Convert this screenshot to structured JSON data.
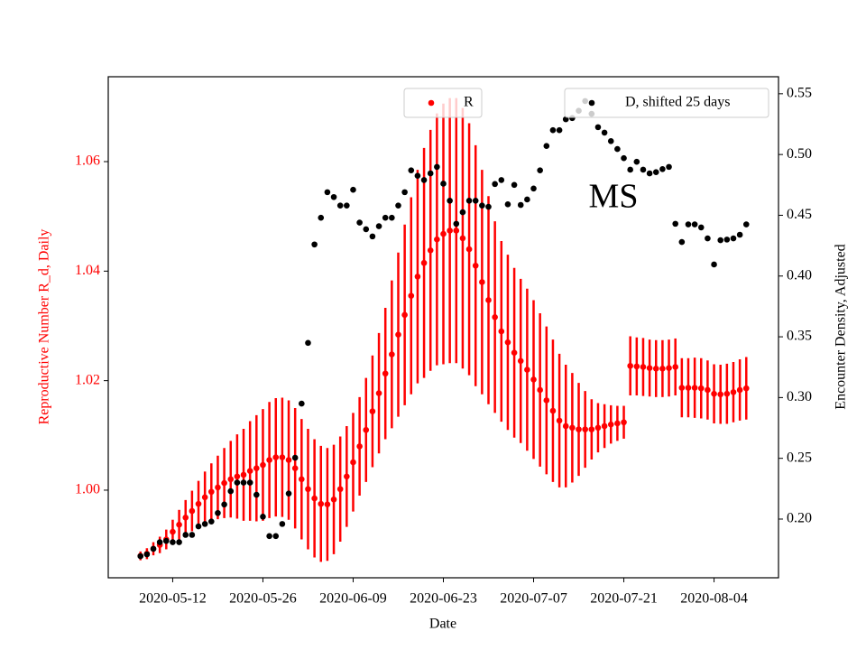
{
  "chart_data": {
    "type": "scatter",
    "xlabel": "Date",
    "ylabel": "Reproductive Number R_d, Daily",
    "y2label": "Encounter Density, Adjusted",
    "annotation": "MS",
    "x": [
      "2020-05-07",
      "2020-05-08",
      "2020-05-09",
      "2020-05-10",
      "2020-05-11",
      "2020-05-12",
      "2020-05-13",
      "2020-05-14",
      "2020-05-15",
      "2020-05-16",
      "2020-05-17",
      "2020-05-18",
      "2020-05-19",
      "2020-05-20",
      "2020-05-21",
      "2020-05-22",
      "2020-05-23",
      "2020-05-24",
      "2020-05-25",
      "2020-05-26",
      "2020-05-27",
      "2020-05-28",
      "2020-05-29",
      "2020-05-30",
      "2020-05-31",
      "2020-06-01",
      "2020-06-02",
      "2020-06-03",
      "2020-06-04",
      "2020-06-05",
      "2020-06-06",
      "2020-06-07",
      "2020-06-08",
      "2020-06-09",
      "2020-06-10",
      "2020-06-11",
      "2020-06-12",
      "2020-06-13",
      "2020-06-14",
      "2020-06-15",
      "2020-06-16",
      "2020-06-17",
      "2020-06-18",
      "2020-06-19",
      "2020-06-20",
      "2020-06-21",
      "2020-06-22",
      "2020-06-23",
      "2020-06-24",
      "2020-06-25",
      "2020-06-26",
      "2020-06-27",
      "2020-06-28",
      "2020-06-29",
      "2020-06-30",
      "2020-07-01",
      "2020-07-02",
      "2020-07-03",
      "2020-07-04",
      "2020-07-05",
      "2020-07-06",
      "2020-07-07",
      "2020-07-08",
      "2020-07-09",
      "2020-07-10",
      "2020-07-11",
      "2020-07-12",
      "2020-07-13",
      "2020-07-14",
      "2020-07-15",
      "2020-07-16",
      "2020-07-17",
      "2020-07-18",
      "2020-07-19",
      "2020-07-20",
      "2020-07-21",
      "2020-07-22",
      "2020-07-23",
      "2020-07-24",
      "2020-07-25",
      "2020-07-26",
      "2020-07-27",
      "2020-07-28",
      "2020-07-29",
      "2020-07-30",
      "2020-07-31",
      "2020-08-01",
      "2020-08-02",
      "2020-08-03",
      "2020-08-04",
      "2020-08-05",
      "2020-08-06",
      "2020-08-07",
      "2020-08-08",
      "2020-08-09"
    ],
    "series": [
      {
        "name": "R",
        "color": "#ff0000",
        "axis": "y",
        "values": [
          0.988,
          0.9884,
          0.9893,
          0.99,
          0.991,
          0.9924,
          0.9937,
          0.995,
          0.9962,
          0.9975,
          0.9987,
          0.9997,
          1.0005,
          1.0013,
          1.002,
          1.0025,
          1.0028,
          1.0035,
          1.004,
          1.0046,
          1.0055,
          1.006,
          1.006,
          1.0055,
          1.004,
          1.002,
          1.0002,
          0.9985,
          0.9975,
          0.9974,
          0.9983,
          1.0002,
          1.0025,
          1.0051,
          1.008,
          1.011,
          1.0144,
          1.0177,
          1.0213,
          1.0248,
          1.0284,
          1.032,
          1.0355,
          1.039,
          1.0415,
          1.0438,
          1.0458,
          1.0468,
          1.0474,
          1.0474,
          1.046,
          1.044,
          1.041,
          1.038,
          1.0347,
          1.0316,
          1.029,
          1.027,
          1.0251,
          1.0236,
          1.022,
          1.0202,
          1.0183,
          1.0164,
          1.0145,
          1.0127,
          1.0117,
          1.0114,
          1.0111,
          1.0111,
          1.0111,
          1.0114,
          1.0117,
          1.012,
          1.0122,
          1.0124,
          1.0227,
          1.0226,
          1.0225,
          1.0223,
          1.0222,
          1.0222,
          1.0223,
          1.0225,
          1.0187,
          1.0187,
          1.0187,
          1.0186,
          1.0183,
          1.0176,
          1.0175,
          1.0176,
          1.0179,
          1.0183,
          1.0186
        ],
        "errors": [
          0.0008,
          0.001,
          0.0012,
          0.0015,
          0.0018,
          0.0022,
          0.0027,
          0.0032,
          0.0037,
          0.0042,
          0.0047,
          0.0052,
          0.0058,
          0.0064,
          0.007,
          0.0077,
          0.0084,
          0.0091,
          0.0097,
          0.0102,
          0.0106,
          0.0108,
          0.0109,
          0.0109,
          0.011,
          0.011,
          0.011,
          0.0108,
          0.0106,
          0.0103,
          0.01,
          0.0096,
          0.0092,
          0.009,
          0.009,
          0.0095,
          0.0102,
          0.011,
          0.012,
          0.0135,
          0.015,
          0.0165,
          0.018,
          0.0195,
          0.021,
          0.022,
          0.023,
          0.0238,
          0.0242,
          0.0242,
          0.0238,
          0.023,
          0.022,
          0.0205,
          0.019,
          0.0175,
          0.0165,
          0.016,
          0.0155,
          0.015,
          0.0148,
          0.0145,
          0.014,
          0.0135,
          0.013,
          0.0122,
          0.0112,
          0.01,
          0.0085,
          0.007,
          0.0055,
          0.0045,
          0.004,
          0.0035,
          0.0032,
          0.003,
          0.0054,
          0.0053,
          0.0053,
          0.0052,
          0.0052,
          0.0052,
          0.0052,
          0.0052,
          0.0054,
          0.0054,
          0.0055,
          0.0055,
          0.0054,
          0.0054,
          0.0054,
          0.0055,
          0.0055,
          0.0056,
          0.0057
        ]
      },
      {
        "name": "D, shifted 25 days",
        "color": "#000000",
        "axis": "y2",
        "values": [
          0.1695,
          0.171,
          0.1755,
          0.181,
          0.182,
          0.181,
          0.181,
          0.187,
          0.187,
          0.194,
          0.196,
          0.198,
          0.205,
          0.212,
          0.223,
          0.23,
          0.23,
          0.23,
          0.22,
          0.202,
          0.186,
          0.186,
          0.196,
          0.221,
          0.2505,
          0.295,
          0.345,
          0.426,
          0.448,
          0.469,
          0.465,
          0.458,
          0.458,
          0.471,
          0.444,
          0.4385,
          0.4326,
          0.441,
          0.448,
          0.448,
          0.458,
          0.469,
          0.487,
          0.4825,
          0.479,
          0.4845,
          0.4898,
          0.476,
          0.462,
          0.443,
          0.4525,
          0.462,
          0.462,
          0.458,
          0.457,
          0.4757,
          0.479,
          0.459,
          0.475,
          0.4585,
          0.463,
          0.472,
          0.487,
          0.507,
          0.52,
          0.52,
          0.529,
          0.53,
          0.536,
          0.544,
          0.5335,
          0.5225,
          0.518,
          0.511,
          0.5045,
          0.497,
          0.4875,
          0.494,
          0.4875,
          0.4845,
          0.4855,
          0.488,
          0.4898,
          0.443,
          0.428,
          0.4425,
          0.4425,
          0.44,
          0.431,
          0.4095,
          0.4295,
          0.43,
          0.431,
          0.434,
          0.4425
        ]
      }
    ],
    "xlim": [
      "2020-05-02",
      "2020-08-14"
    ],
    "xticks": [
      "2020-05-12",
      "2020-05-26",
      "2020-06-09",
      "2020-06-23",
      "2020-07-07",
      "2020-07-21",
      "2020-08-04"
    ],
    "ylim": [
      0.984,
      1.0755
    ],
    "yticks": [
      {
        "value": 1,
        "label": "1.00"
      },
      1.02,
      1.04,
      1.06
    ],
    "y2lim": [
      0.1517,
      0.564
    ],
    "y2ticks": [
      {
        "value": 0.2,
        "label": "0.20"
      },
      0.25,
      {
        "value": 0.3,
        "label": "0.30"
      },
      0.35,
      {
        "value": 0.4,
        "label": "0.40"
      },
      0.45,
      {
        "value": 0.5,
        "label": "0.50"
      },
      0.55
    ],
    "grid": false
  }
}
